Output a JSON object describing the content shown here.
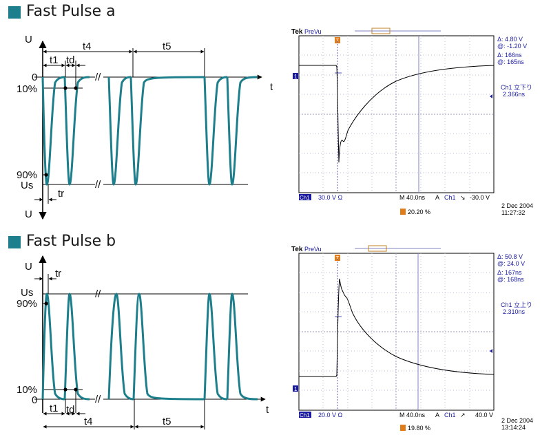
{
  "sections": [
    {
      "title": "Fast Pulse a",
      "diagram": {
        "axis_top": "U",
        "axis_bottom": "U",
        "axis_t": "t",
        "level_0": "0",
        "level_10": "10%",
        "level_90": "90%",
        "level_us": "Us",
        "t1": "t1",
        "td": "td",
        "t4": "t4",
        "t5": "t5",
        "tr": "tr",
        "break": "//"
      },
      "scope": {
        "brand": "Tek",
        "mode": "PreVu",
        "trig_marker": "T",
        "ch_marker": "1",
        "cursor_dv": "Δ:   4.80 V",
        "cursor_av": "@:  -1.20 V",
        "cursor_dt": "Δ:    166ns",
        "cursor_at": "@:    165ns",
        "meas_name": "Ch1 立下り",
        "meas_val": "2.366ns",
        "ch1": "Ch1",
        "ch1_scale": "30.0 V Ω",
        "tb_m": "M",
        "timebase": "40.0ns",
        "trig_a": "A",
        "trig_ch": "Ch1",
        "trig_slope": "↘",
        "trig_level": "-30.0 V",
        "trig_pct": "20.20 %",
        "date": "2 Dec  2004",
        "time": "11:27:32"
      }
    },
    {
      "title": "Fast Pulse b",
      "diagram": {
        "axis_top": "U",
        "axis_t": "t",
        "level_0": "0",
        "level_10": "10%",
        "level_90": "90%",
        "level_us": "Us",
        "t1": "t1",
        "td": "td",
        "t4": "t4",
        "t5": "t5",
        "tr": "tr",
        "break": "//"
      },
      "scope": {
        "brand": "Tek",
        "mode": "PreVu",
        "trig_marker": "T",
        "ch_marker": "1",
        "cursor_dv": "Δ:   50.8 V",
        "cursor_av": "@:   24.0 V",
        "cursor_dt": "Δ:    167ns",
        "cursor_at": "@:    168ns",
        "meas_name": "Ch1 立上り",
        "meas_val": "2.310ns",
        "ch1": "Ch1",
        "ch1_scale": "20.0 V Ω",
        "tb_m": "M",
        "timebase": "40.0ns",
        "trig_a": "A",
        "trig_ch": "Ch1",
        "trig_slope": "↗",
        "trig_level": "40.0 V",
        "trig_pct": "19.80 %",
        "date": "2 Dec  2004",
        "time": "13:14:24"
      }
    }
  ],
  "colors": {
    "accent": "#1d7f8b",
    "pulse": "#1d7f8b",
    "scope_grid": "#9a9ab8",
    "scope_text": "#1a1aa0"
  }
}
